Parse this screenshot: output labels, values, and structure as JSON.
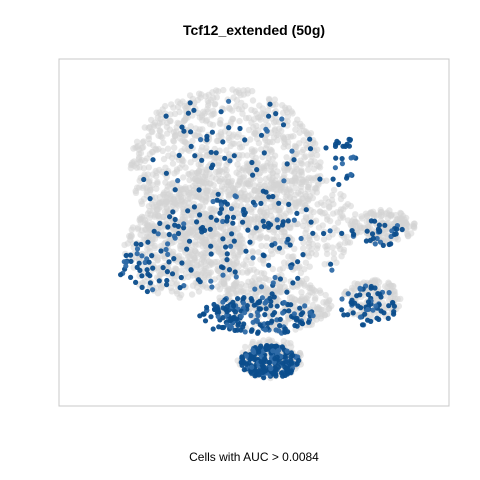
{
  "chart_data": {
    "type": "scatter",
    "title": "Tcf12_extended (50g)",
    "xlabel": "Cells with AUC > 0.0084",
    "ylabel": "",
    "grid": false,
    "legend": "none",
    "colors": {
      "background_cells": "#d3d3d3",
      "high_auc_cells": "#0b4d8c",
      "high_auc_cells_light": "#2e6aa6",
      "panel_border": "#c8c8c8"
    },
    "xlim": [
      0,
      100
    ],
    "ylim": [
      0,
      100
    ],
    "series": [
      {
        "role": "background",
        "clusters": [
          {
            "cx": 42,
            "cy": 70,
            "rx": 26,
            "ry": 24,
            "n": 900
          },
          {
            "cx": 48,
            "cy": 52,
            "rx": 30,
            "ry": 20,
            "n": 700
          },
          {
            "cx": 30,
            "cy": 44,
            "rx": 16,
            "ry": 14,
            "n": 300
          },
          {
            "cx": 85,
            "cy": 52,
            "rx": 9,
            "ry": 5,
            "n": 160
          },
          {
            "cx": 82,
            "cy": 30,
            "rx": 8,
            "ry": 6,
            "n": 140
          },
          {
            "cx": 55,
            "cy": 28,
            "rx": 16,
            "ry": 8,
            "n": 280
          },
          {
            "cx": 54,
            "cy": 12,
            "rx": 9,
            "ry": 6,
            "n": 160
          }
        ]
      },
      {
        "role": "auc_above_threshold",
        "clusters": [
          {
            "cx": 42,
            "cy": 68,
            "rx": 26,
            "ry": 24,
            "n": 90
          },
          {
            "cx": 45,
            "cy": 46,
            "rx": 30,
            "ry": 16,
            "n": 110
          },
          {
            "cx": 20,
            "cy": 40,
            "rx": 8,
            "ry": 8,
            "n": 35
          },
          {
            "cx": 50,
            "cy": 25,
            "rx": 16,
            "ry": 6,
            "n": 170
          },
          {
            "cx": 54,
            "cy": 11,
            "rx": 8,
            "ry": 5,
            "n": 210
          },
          {
            "cx": 81,
            "cy": 28,
            "rx": 8,
            "ry": 6,
            "n": 60
          },
          {
            "cx": 83,
            "cy": 50,
            "rx": 8,
            "ry": 4,
            "n": 30
          },
          {
            "cx": 73,
            "cy": 72,
            "rx": 5,
            "ry": 8,
            "n": 25
          }
        ]
      }
    ]
  }
}
